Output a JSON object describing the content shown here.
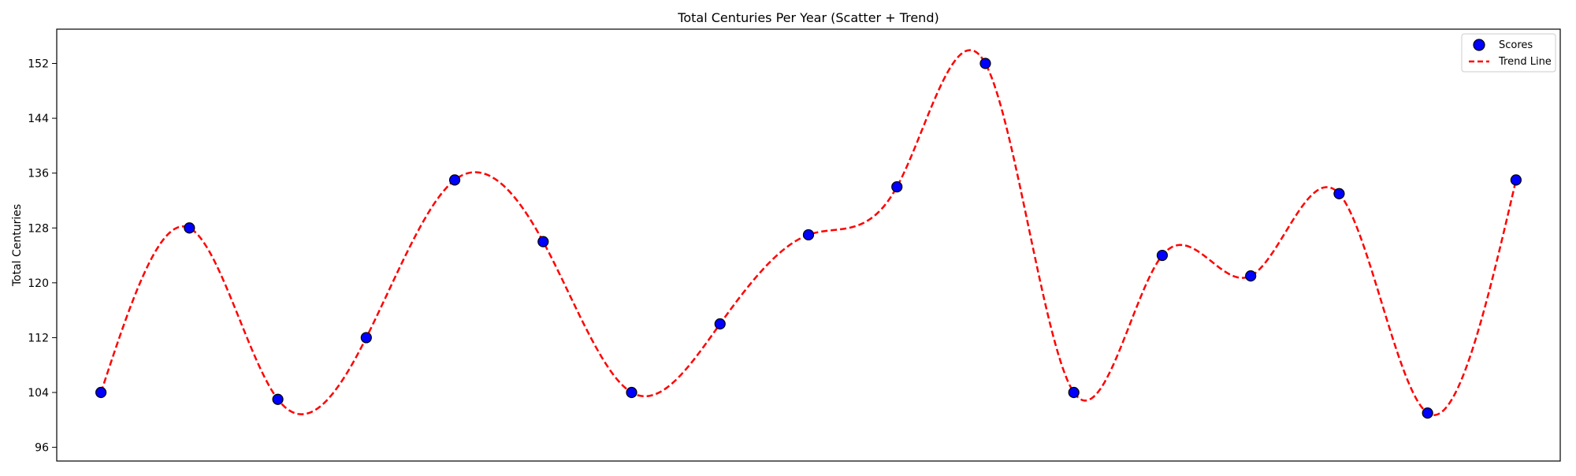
{
  "chart_data": {
    "type": "scatter",
    "title": "Total Centuries Per Year (Scatter + Trend)",
    "xlabel": "",
    "ylabel": "Total Centuries",
    "x": [
      0,
      1,
      2,
      3,
      4,
      5,
      6,
      7,
      8,
      9,
      10,
      11,
      12,
      13,
      14,
      15,
      16
    ],
    "xlim": [
      -0.5,
      16.5
    ],
    "ylim": [
      94,
      157
    ],
    "yticks": [
      96,
      104,
      112,
      120,
      128,
      136,
      144,
      152
    ],
    "grid": false,
    "legend_position": "top-right",
    "series": [
      {
        "name": "Scores",
        "kind": "scatter",
        "color": "#0000ff",
        "edge_color": "#000000",
        "values": [
          104,
          128,
          103,
          112,
          135,
          126,
          104,
          114,
          127,
          134,
          152,
          104,
          124,
          121,
          133,
          101,
          135
        ]
      },
      {
        "name": "Trend Line",
        "kind": "line",
        "style": "dashed",
        "color": "#ff0000",
        "smooth": true
      }
    ]
  }
}
